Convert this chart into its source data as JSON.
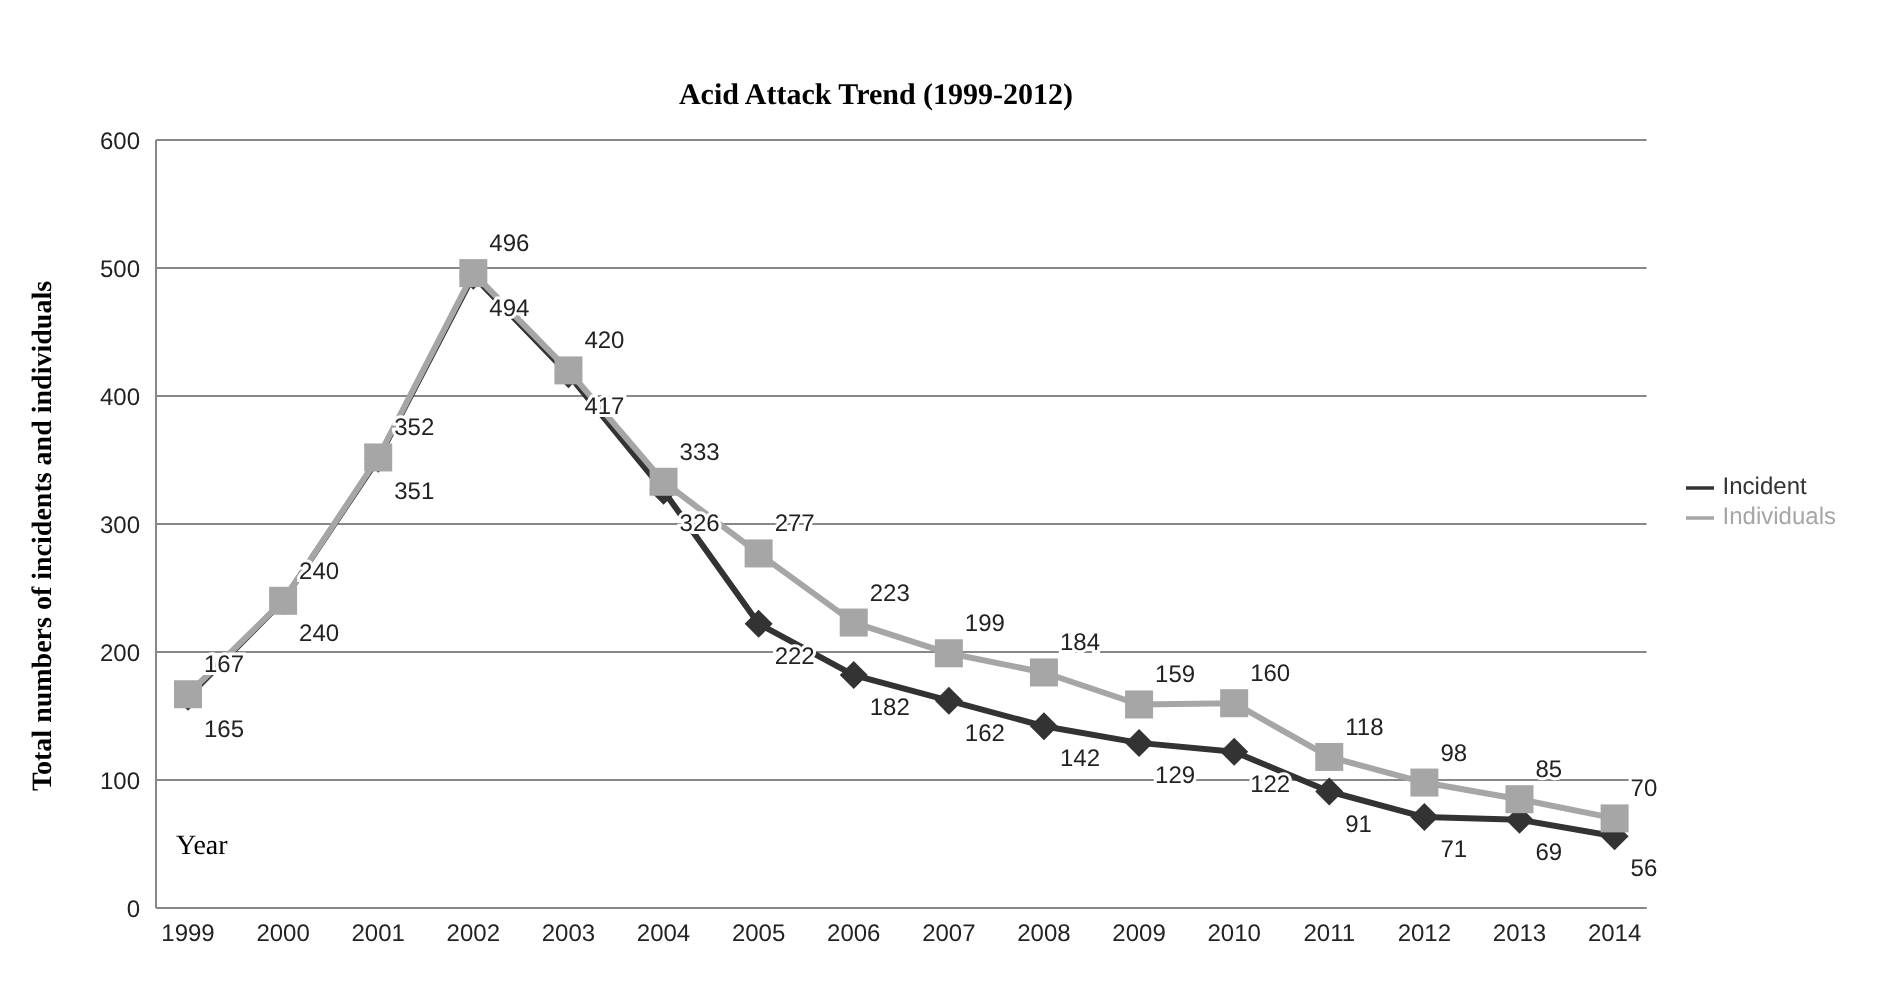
{
  "chart_data": {
    "type": "line",
    "title": "Acid Attack Trend (1999-2012)",
    "xlabel": "Year",
    "ylabel": "Total numbers of incidents and individuals",
    "categories": [
      "1999",
      "2000",
      "2001",
      "2002",
      "2003",
      "2004",
      "2005",
      "2006",
      "2007",
      "2008",
      "2009",
      "2010",
      "2011",
      "2012",
      "2013",
      "2014"
    ],
    "series": [
      {
        "name": "Incident",
        "color": "#333333",
        "marker": "diamond",
        "values": [
          165,
          240,
          351,
          494,
          417,
          326,
          222,
          182,
          162,
          142,
          129,
          122,
          91,
          71,
          69,
          56
        ]
      },
      {
        "name": "Individuals",
        "color": "#a6a6a6",
        "marker": "square",
        "values": [
          167,
          240,
          352,
          496,
          420,
          333,
          277,
          223,
          199,
          184,
          159,
          160,
          118,
          98,
          85,
          70
        ]
      }
    ],
    "ylim": [
      0,
      600
    ],
    "yticks": [
      0,
      100,
      200,
      300,
      400,
      500,
      600
    ],
    "grid": "y",
    "legend": "right",
    "data_labels": true,
    "line_style": "solid"
  }
}
